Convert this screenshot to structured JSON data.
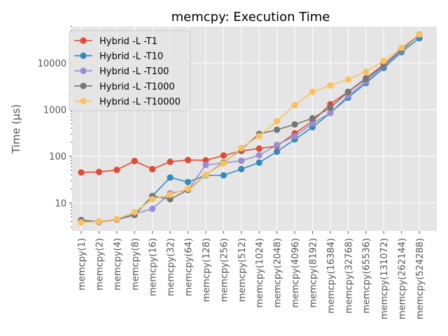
{
  "chart_data": {
    "type": "line",
    "title": "memcpy: Execution Time",
    "xlabel": "",
    "ylabel": "Time (µs)",
    "y_scale": "log",
    "ylim": [
      2.5,
      60000
    ],
    "y_ticks": [
      10,
      100,
      1000,
      10000
    ],
    "y_tick_labels": [
      "10",
      "100",
      "1000",
      "10000"
    ],
    "grid": true,
    "legend_position": "top-left",
    "categories": [
      "memcpy(1)",
      "memcpy(2)",
      "memcpy(4)",
      "memcpy(8)",
      "memcpy(16)",
      "memcpy(32)",
      "memcpy(64)",
      "memcpy(128)",
      "memcpy(256)",
      "memcpy(512)",
      "memcpy(1024)",
      "memcpy(2048)",
      "memcpy(4096)",
      "memcpy(8192)",
      "memcpy(16384)",
      "memcpy(32768)",
      "memcpy(65536)",
      "memcpy(131072)",
      "memcpy(262144)",
      "memcpy(524288)"
    ],
    "series": [
      {
        "name": "Hybrid -L -T1",
        "color": "#E24A33",
        "values": [
          45,
          46,
          51,
          79,
          53,
          76,
          83,
          82,
          104,
          130,
          146,
          165,
          310,
          560,
          1300,
          2400,
          4700,
          9200,
          19500,
          41000
        ]
      },
      {
        "name": "Hybrid -L -T10",
        "color": "#348ABD",
        "values": [
          4.2,
          4.0,
          4.4,
          5.6,
          14,
          35,
          28,
          39,
          39,
          53,
          73,
          125,
          230,
          420,
          850,
          1800,
          3700,
          7800,
          17000,
          34000
        ]
      },
      {
        "name": "Hybrid -L -T100",
        "color": "#988ED5",
        "values": [
          3.9,
          4.0,
          4.4,
          5.8,
          7.5,
          16,
          19,
          65,
          72,
          80,
          105,
          175,
          270,
          500,
          850,
          2000,
          4000,
          8600,
          18500,
          40000
        ]
      },
      {
        "name": "Hybrid -L -T1000",
        "color": "#777777",
        "values": [
          4.3,
          3.9,
          4.4,
          5.5,
          14,
          12,
          19,
          40,
          73,
          140,
          300,
          370,
          480,
          650,
          1100,
          2400,
          4500,
          8900,
          19500,
          40500
        ]
      },
      {
        "name": "Hybrid -L -T10000",
        "color": "#FBC15E",
        "values": [
          3.8,
          4.0,
          4.5,
          6.3,
          12,
          15,
          20,
          40,
          70,
          150,
          270,
          560,
          1250,
          2400,
          3300,
          4400,
          6500,
          11000,
          21000,
          41000
        ]
      }
    ]
  }
}
